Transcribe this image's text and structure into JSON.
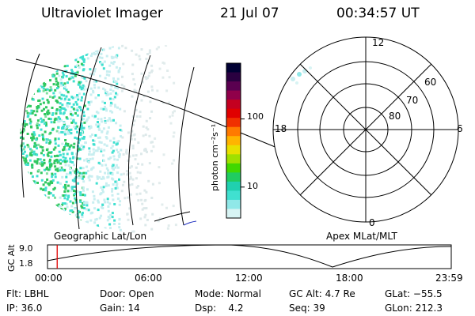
{
  "header": {
    "instrument": "Ultraviolet Imager",
    "date": "21 Jul 07",
    "time": "00:34:57 UT"
  },
  "colorbar": {
    "unit_label": "photon cm⁻²s⁻¹",
    "ticks": [
      "100",
      "10"
    ],
    "colors": [
      "#000033",
      "#2a0040",
      "#5a0050",
      "#90004a",
      "#c40020",
      "#e00000",
      "#f03000",
      "#ff7a00",
      "#ffb400",
      "#e8e000",
      "#a0e000",
      "#40d800",
      "#20cc60",
      "#20d0b0",
      "#40e0d0",
      "#90e8e8",
      "#d8f4f4"
    ]
  },
  "polar_plot": {
    "mlt_labels": [
      "12",
      "18",
      "6",
      "0"
    ],
    "lat_labels": [
      "60",
      "70",
      "80"
    ]
  },
  "map_labels": {
    "left": "Geographic Lat/Lon",
    "right": "Apex MLat/MLT"
  },
  "timeline": {
    "y_label": "GC Alt",
    "y_ticks": [
      "9.0",
      "1.8"
    ],
    "x_ticks": [
      "00:00",
      "06:00",
      "12:00",
      "18:00",
      "23:59"
    ],
    "current_fraction": 0.024
  },
  "status": {
    "rows": [
      [
        {
          "label": "Flt:",
          "value": "LBHL"
        },
        {
          "label": "Door:",
          "value": "Open"
        },
        {
          "label": "Mode:",
          "value": "Normal"
        },
        {
          "label": "GC Alt:",
          "value": "4.7 Re"
        },
        {
          "label": "GLat:",
          "value": "−55.5"
        }
      ],
      [
        {
          "label": "IP:",
          "value": "36.0"
        },
        {
          "label": "Gain:",
          "value": "14"
        },
        {
          "label": "Dsp:",
          "value": "4.2"
        },
        {
          "label": "Seq:",
          "value": "39"
        },
        {
          "label": "GLon:",
          "value": "212.3"
        }
      ]
    ]
  },
  "colors": {
    "aurora_green": "#30c860",
    "aurora_cyan": "#40e0d0",
    "aurora_pale": "#c8eef0",
    "marker_red": "#e00000"
  }
}
